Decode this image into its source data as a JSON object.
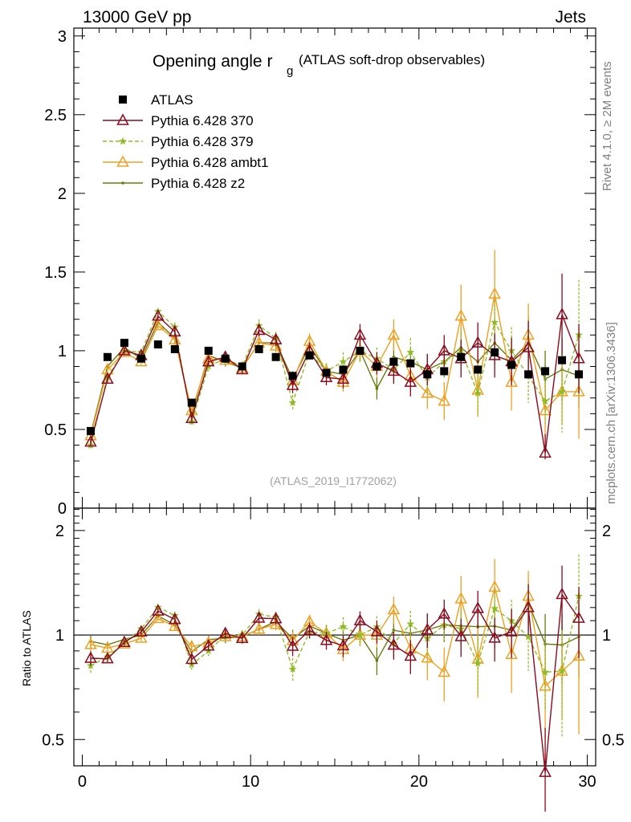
{
  "header": {
    "energy": "13000 GeV pp",
    "category": "Jets",
    "side_top": "Rivet 4.1.0, ≥ 2M events",
    "side_bottom": "mcplots.cern.ch [arXiv:1306.3436]"
  },
  "colors": {
    "ATLAS": "#000000",
    "p370": "#8b0a1e",
    "p379": "#8fbc25",
    "ambt1": "#f0a020",
    "z2": "#6b7a10",
    "watermark": "#a0a0a0"
  },
  "chart_data": {
    "type": "line",
    "title_main": "Opening angle r",
    "title_sub": "g",
    "title_rest": "(ATLAS soft-drop observables)",
    "analysis_label": "(ATLAS_2019_I1772062)",
    "ratio_ylabel": "Ratio to ATLAS",
    "xlim": [
      -0.5,
      30.5
    ],
    "ylim_main": [
      0,
      3.05
    ],
    "ylim_ratio": [
      0.42,
      2.32
    ],
    "x_ticks": [
      "0",
      "10",
      "20",
      "30"
    ],
    "y_ticks_main": [
      "0",
      "0.5",
      "1",
      "1.5",
      "2",
      "2.5",
      "3"
    ],
    "y_ticks_ratio": [
      "0.5",
      "1",
      "2"
    ],
    "x": [
      0.5,
      1.5,
      2.5,
      3.5,
      4.5,
      5.5,
      6.5,
      7.5,
      8.5,
      9.5,
      10.5,
      11.5,
      12.5,
      13.5,
      14.5,
      15.5,
      16.5,
      17.5,
      18.5,
      19.5,
      20.5,
      21.5,
      22.5,
      23.5,
      24.5,
      25.5,
      26.5,
      27.5,
      28.5,
      29.5
    ],
    "legend": [
      "ATLAS",
      "Pythia 6.428 370",
      "Pythia 6.428 379",
      "Pythia 6.428 ambt1",
      "Pythia 6.428 z2"
    ],
    "series": [
      {
        "name": "ATLAS",
        "key": "ATLAS",
        "marker": "square",
        "values": [
          0.49,
          0.96,
          1.05,
          0.95,
          1.04,
          1.01,
          0.67,
          1.0,
          0.95,
          0.9,
          1.01,
          0.96,
          0.84,
          0.97,
          0.86,
          0.88,
          1.0,
          0.9,
          0.93,
          0.92,
          0.85,
          0.87,
          0.96,
          0.88,
          0.99,
          0.91,
          0.85,
          0.87,
          0.94,
          0.85
        ],
        "errors": [
          0,
          0,
          0,
          0,
          0,
          0,
          0,
          0,
          0,
          0,
          0,
          0,
          0,
          0,
          0,
          0,
          0,
          0,
          0,
          0,
          0,
          0,
          0,
          0,
          0,
          0,
          0,
          0,
          0,
          0
        ]
      },
      {
        "name": "Pythia 6.428 370",
        "key": "p370",
        "marker": "triangle",
        "values": [
          0.42,
          0.82,
          1.0,
          0.97,
          1.22,
          1.12,
          0.57,
          0.93,
          0.96,
          0.88,
          1.13,
          1.07,
          0.78,
          1.0,
          0.83,
          0.82,
          1.1,
          0.92,
          0.87,
          0.8,
          0.88,
          1.0,
          0.95,
          1.05,
          0.97,
          0.93,
          1.02,
          0.35,
          1.23,
          0.95
        ],
        "errors": [
          0.02,
          0.02,
          0.02,
          0.02,
          0.02,
          0.03,
          0.02,
          0.03,
          0.03,
          0.03,
          0.04,
          0.04,
          0.05,
          0.05,
          0.05,
          0.06,
          0.07,
          0.07,
          0.08,
          0.09,
          0.1,
          0.1,
          0.12,
          0.13,
          0.14,
          0.15,
          0.17,
          0.12,
          0.26,
          0.22
        ]
      },
      {
        "name": "Pythia 6.428 379",
        "key": "p379",
        "marker": "star",
        "values": [
          0.4,
          0.83,
          1.0,
          0.99,
          1.25,
          1.15,
          0.55,
          0.9,
          0.95,
          0.9,
          1.16,
          1.08,
          0.67,
          0.99,
          0.87,
          0.93,
          1.0,
          0.95,
          0.88,
          0.99,
          0.83,
          0.93,
          1.0,
          0.73,
          1.18,
          1.0,
          0.84,
          0.68,
          0.74,
          1.1
        ],
        "errors": [
          0.02,
          0.02,
          0.02,
          0.02,
          0.02,
          0.03,
          0.02,
          0.03,
          0.03,
          0.03,
          0.04,
          0.04,
          0.05,
          0.05,
          0.05,
          0.06,
          0.07,
          0.07,
          0.08,
          0.09,
          0.1,
          0.1,
          0.12,
          0.13,
          0.14,
          0.15,
          0.17,
          0.15,
          0.26,
          0.35
        ]
      },
      {
        "name": "Pythia 6.428 ambt1",
        "key": "ambt1",
        "marker": "triangle",
        "values": [
          0.46,
          0.88,
          0.99,
          0.93,
          1.16,
          1.07,
          0.62,
          0.95,
          0.94,
          0.89,
          1.05,
          1.03,
          0.81,
          1.06,
          0.87,
          0.8,
          1.0,
          0.9,
          1.1,
          0.84,
          0.73,
          0.68,
          1.22,
          0.75,
          1.36,
          0.8,
          1.1,
          0.62,
          0.74,
          0.74
        ],
        "errors": [
          0.02,
          0.02,
          0.02,
          0.02,
          0.02,
          0.03,
          0.02,
          0.03,
          0.03,
          0.03,
          0.04,
          0.04,
          0.05,
          0.05,
          0.05,
          0.06,
          0.07,
          0.07,
          0.1,
          0.1,
          0.1,
          0.12,
          0.2,
          0.17,
          0.28,
          0.18,
          0.2,
          0.18,
          0.2,
          0.3
        ]
      },
      {
        "name": "Pythia 6.428 z2",
        "key": "z2",
        "marker": "dot",
        "values": [
          0.47,
          0.9,
          1.02,
          0.95,
          1.18,
          1.08,
          0.6,
          0.97,
          0.93,
          0.89,
          1.05,
          1.05,
          0.82,
          1.03,
          0.87,
          0.85,
          1.0,
          0.76,
          0.96,
          0.93,
          0.88,
          0.93,
          1.02,
          0.93,
          1.05,
          0.94,
          1.05,
          0.82,
          0.88,
          0.84
        ],
        "errors": [
          0.02,
          0.02,
          0.02,
          0.02,
          0.02,
          0.03,
          0.02,
          0.03,
          0.03,
          0.03,
          0.04,
          0.04,
          0.05,
          0.05,
          0.05,
          0.06,
          0.07,
          0.07,
          0.08,
          0.09,
          0.1,
          0.1,
          0.12,
          0.13,
          0.14,
          0.15,
          0.17,
          0.18,
          0.2,
          0.2
        ]
      }
    ]
  }
}
